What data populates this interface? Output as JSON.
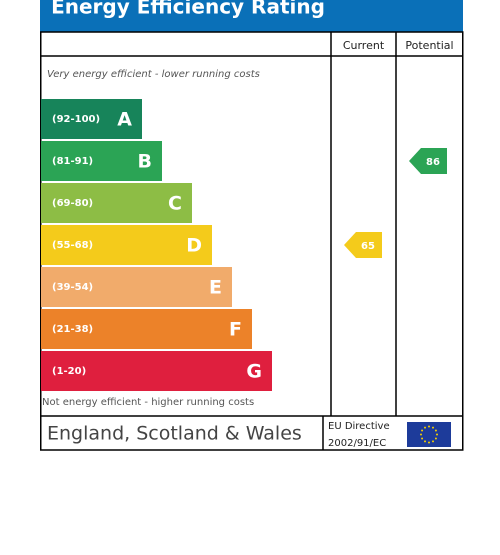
{
  "title": "Energy Efficiency Rating",
  "headers": {
    "current": "Current",
    "potential": "Potential"
  },
  "top_note": "Very energy efficient - lower running costs",
  "bottom_note": "Not energy efficient - higher running costs",
  "bands": [
    {
      "range": "(92-100)",
      "letter": "A",
      "color": "#17845a"
    },
    {
      "range": "(81-91)",
      "letter": "B",
      "color": "#2ba455"
    },
    {
      "range": "(69-80)",
      "letter": "C",
      "color": "#8dbd45"
    },
    {
      "range": "(55-68)",
      "letter": "D",
      "color": "#f4cb1b"
    },
    {
      "range": "(39-54)",
      "letter": "E",
      "color": "#f1ab6b"
    },
    {
      "range": "(21-38)",
      "letter": "F",
      "color": "#ec8229"
    },
    {
      "range": "(1-20)",
      "letter": "G",
      "color": "#df1f3e"
    }
  ],
  "current": 65,
  "potential": 86,
  "footer": {
    "region": "England, Scotland & Wales",
    "directive_line1": "EU Directive",
    "directive_line2": "2002/91/EC"
  }
}
